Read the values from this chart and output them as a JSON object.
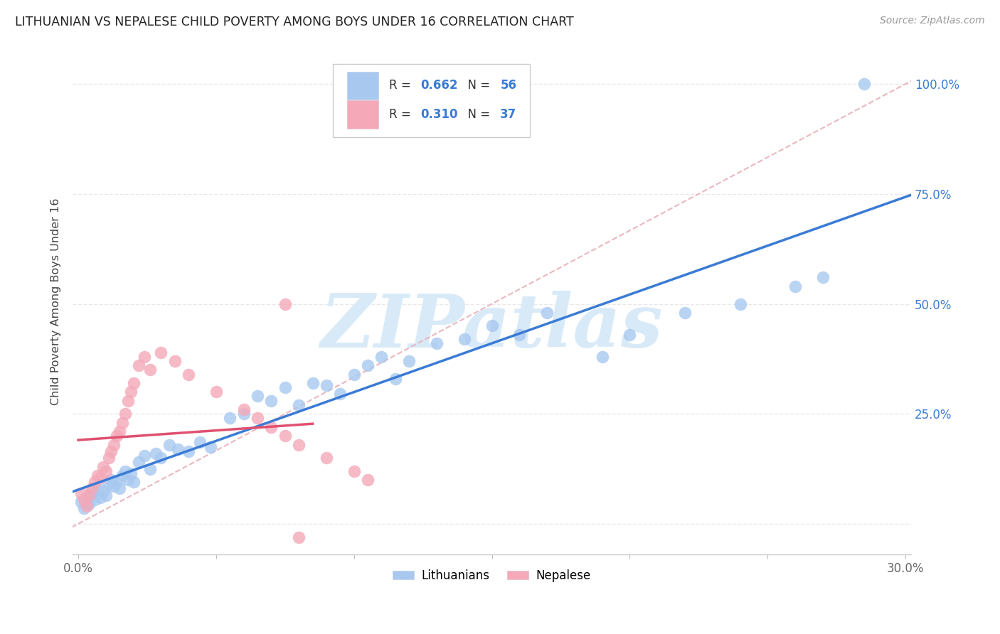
{
  "title": "LITHUANIAN VS NEPALESE CHILD POVERTY AMONG BOYS UNDER 16 CORRELATION CHART",
  "source": "Source: ZipAtlas.com",
  "ylabel": "Child Poverty Among Boys Under 16",
  "xlim": [
    -0.002,
    0.302
  ],
  "ylim": [
    -0.07,
    1.08
  ],
  "xticks": [
    0.0,
    0.05,
    0.1,
    0.15,
    0.2,
    0.25,
    0.3
  ],
  "xtick_labels": [
    "0.0%",
    "",
    "",
    "",
    "",
    "",
    "30.0%"
  ],
  "yticks": [
    0.0,
    0.25,
    0.5,
    0.75,
    1.0
  ],
  "ytick_labels_right": [
    "",
    "25.0%",
    "50.0%",
    "75.0%",
    "100.0%"
  ],
  "blue_line_color": "#3a7bd5",
  "pink_line_color": "#e05070",
  "scatter_blue_color": "#a8c8f0",
  "scatter_pink_color": "#f4a8b8",
  "diag_color": "#e8b0b8",
  "watermark": "ZIPatlas",
  "watermark_color": "#d8eaf8",
  "R_blue": "0.662",
  "N_blue": "56",
  "R_pink": "0.310",
  "N_pink": "37",
  "legend_text_color": "#333333",
  "legend_num_color": "#3a7bd5",
  "grid_color": "#e8e8e8",
  "background_color": "#ffffff",
  "blue_x": [
    0.001,
    0.002,
    0.003,
    0.004,
    0.005,
    0.006,
    0.007,
    0.008,
    0.009,
    0.01,
    0.011,
    0.012,
    0.013,
    0.014,
    0.015,
    0.016,
    0.017,
    0.018,
    0.019,
    0.02,
    0.022,
    0.024,
    0.026,
    0.028,
    0.03,
    0.033,
    0.036,
    0.04,
    0.044,
    0.048,
    0.055,
    0.06,
    0.065,
    0.07,
    0.075,
    0.08,
    0.085,
    0.09,
    0.095,
    0.1,
    0.105,
    0.11,
    0.115,
    0.12,
    0.13,
    0.14,
    0.15,
    0.16,
    0.17,
    0.19,
    0.2,
    0.22,
    0.24,
    0.26,
    0.27,
    0.285
  ],
  "blue_y": [
    0.05,
    0.035,
    0.06,
    0.045,
    0.07,
    0.055,
    0.08,
    0.06,
    0.075,
    0.065,
    0.09,
    0.1,
    0.085,
    0.095,
    0.08,
    0.11,
    0.12,
    0.1,
    0.115,
    0.095,
    0.14,
    0.155,
    0.125,
    0.16,
    0.15,
    0.18,
    0.17,
    0.165,
    0.185,
    0.175,
    0.24,
    0.25,
    0.29,
    0.28,
    0.31,
    0.27,
    0.32,
    0.315,
    0.295,
    0.34,
    0.36,
    0.38,
    0.33,
    0.37,
    0.41,
    0.42,
    0.45,
    0.43,
    0.48,
    0.38,
    0.43,
    0.48,
    0.5,
    0.54,
    0.56,
    1.0
  ],
  "pink_x": [
    0.001,
    0.002,
    0.003,
    0.004,
    0.005,
    0.006,
    0.007,
    0.008,
    0.009,
    0.01,
    0.011,
    0.012,
    0.013,
    0.014,
    0.015,
    0.016,
    0.017,
    0.018,
    0.019,
    0.02,
    0.022,
    0.024,
    0.026,
    0.03,
    0.035,
    0.04,
    0.05,
    0.06,
    0.065,
    0.07,
    0.075,
    0.08,
    0.09,
    0.1,
    0.105,
    0.075,
    0.08
  ],
  "pink_y": [
    0.07,
    0.055,
    0.04,
    0.065,
    0.08,
    0.095,
    0.11,
    0.105,
    0.13,
    0.12,
    0.15,
    0.165,
    0.18,
    0.2,
    0.21,
    0.23,
    0.25,
    0.28,
    0.3,
    0.32,
    0.36,
    0.38,
    0.35,
    0.39,
    0.37,
    0.34,
    0.3,
    0.26,
    0.24,
    0.22,
    0.2,
    0.18,
    0.15,
    0.12,
    0.1,
    0.5,
    -0.03
  ]
}
